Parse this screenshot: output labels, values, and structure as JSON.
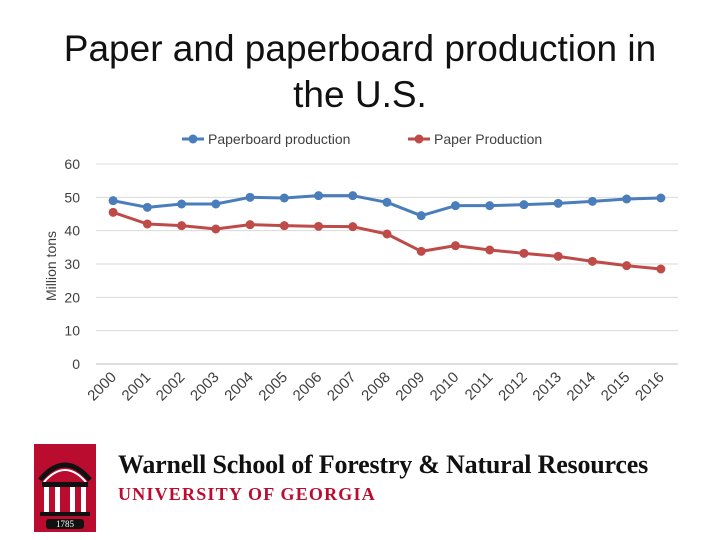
{
  "page": {
    "title_line1": "Paper and paperboard production in",
    "title_line2": "the U.S."
  },
  "chart_data": {
    "type": "line",
    "title": "",
    "ylabel": "Million tons",
    "xlabel": "",
    "x": [
      "2000",
      "2001",
      "2002",
      "2003",
      "2004",
      "2005",
      "2006",
      "2007",
      "2008",
      "2009",
      "2010",
      "2011",
      "2012",
      "2013",
      "2014",
      "2015",
      "2016"
    ],
    "ylim": [
      0,
      60
    ],
    "yticks": [
      0,
      10,
      20,
      30,
      40,
      50,
      60
    ],
    "grid": true,
    "legend_position": "top",
    "series": [
      {
        "name": "Paperboard production",
        "color": "#4a7ebb",
        "values": [
          49,
          47,
          48,
          48,
          50,
          49.8,
          50.5,
          50.5,
          48.5,
          44.5,
          47.5,
          47.5,
          47.8,
          48.2,
          48.8,
          49.5,
          49.8
        ]
      },
      {
        "name": "Paper Production",
        "color": "#be4b48",
        "values": [
          45.5,
          42,
          41.5,
          40.5,
          41.8,
          41.5,
          41.3,
          41.2,
          39,
          33.8,
          35.5,
          34.2,
          33.2,
          32.3,
          30.8,
          29.5,
          28.5
        ]
      }
    ]
  },
  "footer": {
    "school": "Warnell School of Forestry & Natural Resources",
    "university": "UNIVERSITY OF GEORGIA",
    "logo_year": "1785",
    "logo_color": "#ba0c2f"
  }
}
